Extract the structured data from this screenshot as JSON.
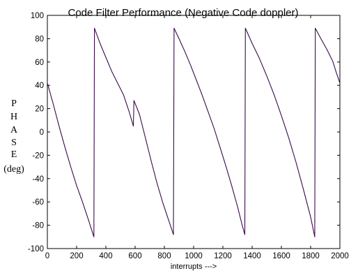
{
  "chart_data": {
    "type": "line",
    "title": "Code Filter Performance  (Negative Code doppler)",
    "xlabel": "interrupts --->",
    "ylabel_lines": [
      "P",
      "H",
      "A",
      "S",
      "E",
      "(deg)"
    ],
    "xlim": [
      0,
      2000
    ],
    "ylim": [
      -100,
      100
    ],
    "x_ticks": [
      0,
      200,
      400,
      600,
      800,
      1000,
      1200,
      1400,
      1600,
      1800,
      2000
    ],
    "y_ticks": [
      -100,
      -80,
      -60,
      -40,
      -20,
      0,
      20,
      40,
      60,
      80,
      100
    ],
    "grid": false,
    "line_color": "#3a0a4a",
    "series": [
      {
        "segments": [
          [
            [
              0,
              42
            ],
            [
              40,
              24
            ],
            [
              80,
              5
            ],
            [
              120,
              -13
            ],
            [
              160,
              -30
            ],
            [
              200,
              -46
            ],
            [
              240,
              -60
            ],
            [
              280,
              -75
            ],
            [
              318,
              -90
            ]
          ],
          [
            [
              322,
              89
            ],
            [
              360,
              76
            ],
            [
              400,
              64
            ],
            [
              440,
              52
            ],
            [
              480,
              42
            ],
            [
              520,
              32
            ],
            [
              560,
              17
            ],
            [
              588,
              5
            ]
          ],
          [
            [
              592,
              27
            ],
            [
              630,
              15
            ],
            [
              670,
              -5
            ],
            [
              710,
              -25
            ],
            [
              750,
              -44
            ],
            [
              790,
              -61
            ],
            [
              830,
              -76
            ],
            [
              862,
              -88
            ]
          ],
          [
            [
              866,
              89
            ],
            [
              900,
              80
            ],
            [
              940,
              69
            ],
            [
              980,
              57
            ],
            [
              1020,
              44
            ],
            [
              1060,
              31
            ],
            [
              1100,
              17
            ],
            [
              1140,
              3
            ],
            [
              1180,
              -13
            ],
            [
              1220,
              -29
            ],
            [
              1260,
              -46
            ],
            [
              1300,
              -64
            ],
            [
              1330,
              -79
            ],
            [
              1350,
              -88
            ]
          ],
          [
            [
              1354,
              89
            ],
            [
              1400,
              76
            ],
            [
              1450,
              63
            ],
            [
              1500,
              48
            ],
            [
              1550,
              32
            ],
            [
              1600,
              14
            ],
            [
              1650,
              -5
            ],
            [
              1700,
              -26
            ],
            [
              1750,
              -49
            ],
            [
              1800,
              -73
            ],
            [
              1828,
              -90
            ]
          ],
          [
            [
              1832,
              89
            ],
            [
              1870,
              80
            ],
            [
              1910,
              71
            ],
            [
              1950,
              61
            ],
            [
              1975,
              51
            ],
            [
              2000,
              42
            ]
          ]
        ]
      }
    ]
  }
}
